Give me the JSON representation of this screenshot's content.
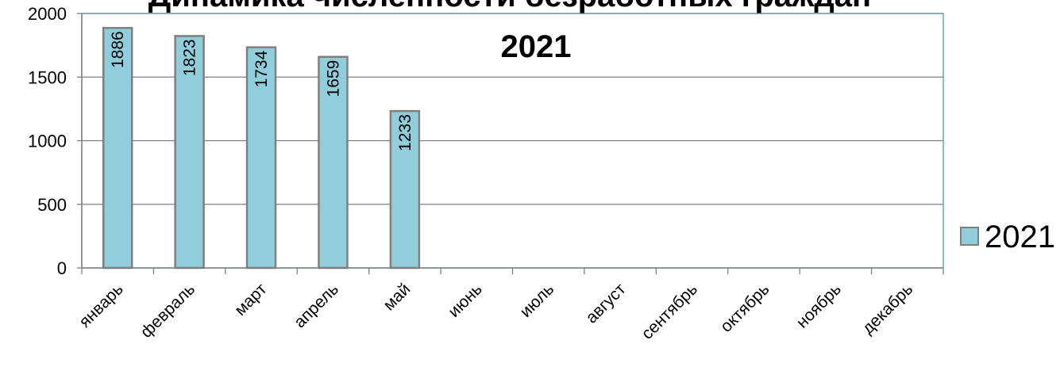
{
  "chart_data": {
    "type": "bar",
    "title_lines": [
      "Динамика численности безработных граждан",
      "2021"
    ],
    "categories": [
      "январь",
      "февраль",
      "март",
      "апрель",
      "май",
      "июнь",
      "июль",
      "август",
      "сентябрь",
      "октябрь",
      "ноябрь",
      "декабрь"
    ],
    "series": [
      {
        "name": "2021",
        "values": [
          1886,
          1823,
          1734,
          1659,
          1233,
          null,
          null,
          null,
          null,
          null,
          null,
          null
        ]
      }
    ],
    "ylim": [
      0,
      2000
    ],
    "yticks": [
      0,
      500,
      1000,
      1500,
      2000
    ],
    "grid": true,
    "legend_position": "right",
    "colors": {
      "bar_fill": "#92CDDC",
      "bar_stroke": "#7F7F7F",
      "gridline": "#7F7F7F",
      "plot_border": "#4F9BA8"
    }
  }
}
